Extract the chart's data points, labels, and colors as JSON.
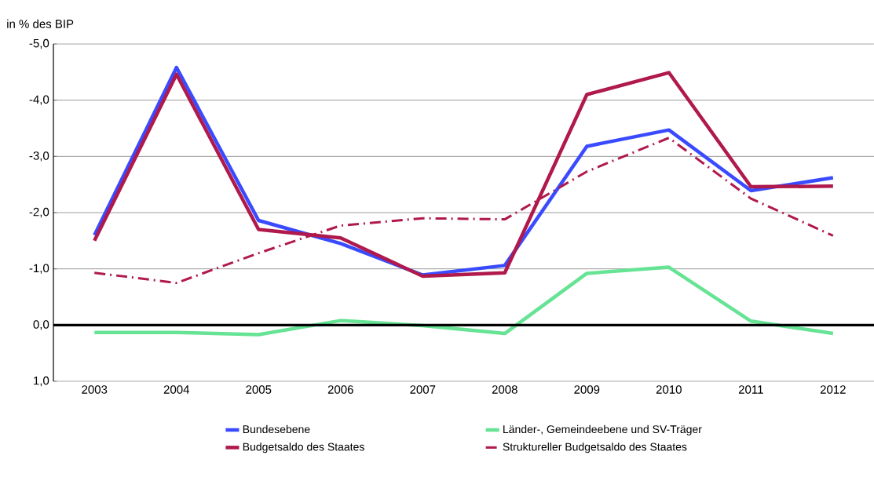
{
  "chart_data": {
    "type": "line",
    "ylabel": "in % des BIP",
    "categories": [
      "2003",
      "2004",
      "2005",
      "2006",
      "2007",
      "2008",
      "2009",
      "2010",
      "2011",
      "2012"
    ],
    "ylim": [
      1,
      -5
    ],
    "yticks": [
      {
        "value": -5,
        "label": "-5,0"
      },
      {
        "value": -4,
        "label": "-4,0"
      },
      {
        "value": -3,
        "label": "-3,0"
      },
      {
        "value": -2,
        "label": "-2,0"
      },
      {
        "value": -1,
        "label": "-1,0"
      },
      {
        "value": 0,
        "label": "0,0"
      },
      {
        "value": 1,
        "label": "1,0"
      }
    ],
    "grid": "y",
    "legend": "bottom",
    "marker": "none",
    "ref_lines": [
      {
        "axis": "y",
        "value": 0,
        "color": "#000000"
      }
    ],
    "series": [
      {
        "name": "Bundesebene",
        "color": "#3a4bff",
        "line_style": "solid",
        "values": [
          -1.6,
          -4.58,
          -1.86,
          -1.45,
          -0.89,
          -1.06,
          -3.18,
          -3.47,
          -2.39,
          -2.62
        ]
      },
      {
        "name": "Länder-, Gemeindeebene und SV-Träger",
        "color": "#66e394",
        "line_style": "solid",
        "values": [
          0.13,
          0.13,
          0.17,
          -0.08,
          0.01,
          0.15,
          -0.92,
          -1.03,
          -0.07,
          0.15
        ]
      },
      {
        "name": "Budgetsaldo des Staates",
        "color": "#b0194b",
        "line_style": "solid",
        "values": [
          -1.5,
          -4.46,
          -1.7,
          -1.55,
          -0.87,
          -0.93,
          -4.1,
          -4.49,
          -2.46,
          -2.47
        ]
      },
      {
        "name": "Struktureller Budgetsaldo des Staates",
        "color": "#b0194b",
        "line_style": "dashed",
        "values": [
          -0.93,
          -0.75,
          -1.28,
          -1.77,
          -1.9,
          -1.88,
          -2.73,
          -3.33,
          -2.25,
          -1.59
        ]
      }
    ]
  }
}
